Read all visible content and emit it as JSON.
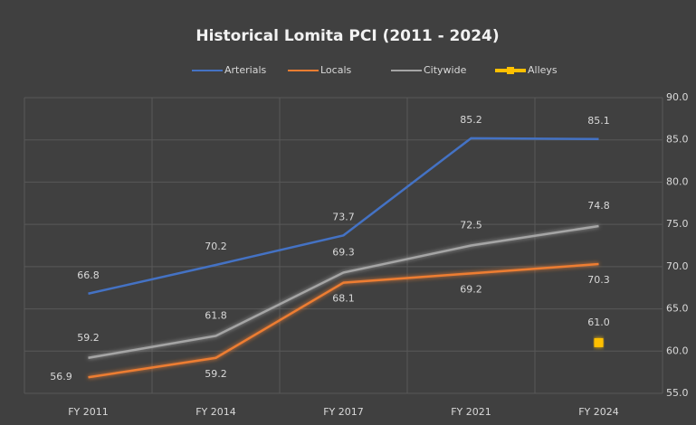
{
  "chart_data": {
    "type": "line",
    "title": "Historical Lomita PCI (2011 - 2024)",
    "categories": [
      "FY 2011",
      "FY 2014",
      "FY 2017",
      "FY 2021",
      "FY 2024"
    ],
    "series": [
      {
        "name": "Arterials",
        "color": "#4472c4",
        "values": [
          66.8,
          70.2,
          73.7,
          85.2,
          85.1
        ]
      },
      {
        "name": "Locals",
        "color": "#ed7d31",
        "values": [
          56.9,
          59.2,
          68.1,
          69.2,
          70.3
        ]
      },
      {
        "name": "Citywide",
        "color": "#a5a5a5",
        "values": [
          59.2,
          61.8,
          69.3,
          72.5,
          74.8
        ]
      },
      {
        "name": "Alleys",
        "color": "#ffc000",
        "values": [
          null,
          null,
          null,
          null,
          61.0
        ],
        "value_labels": [
          null,
          null,
          null,
          null,
          "61.0"
        ],
        "line": false,
        "marker": "square"
      }
    ],
    "ylim": [
      55,
      90
    ],
    "yticks": [
      {
        "value": 55,
        "label": "55.0"
      },
      {
        "value": 60,
        "label": "60.0"
      },
      {
        "value": 65,
        "label": "65.0"
      },
      {
        "value": 70,
        "label": "70.0"
      },
      {
        "value": 75,
        "label": "75.0"
      },
      {
        "value": 80,
        "label": "80.0"
      },
      {
        "value": 85,
        "label": "85.0"
      },
      {
        "value": 90,
        "label": "90.0"
      }
    ],
    "grid": true,
    "legend": "top",
    "y_axis_side": "right"
  }
}
